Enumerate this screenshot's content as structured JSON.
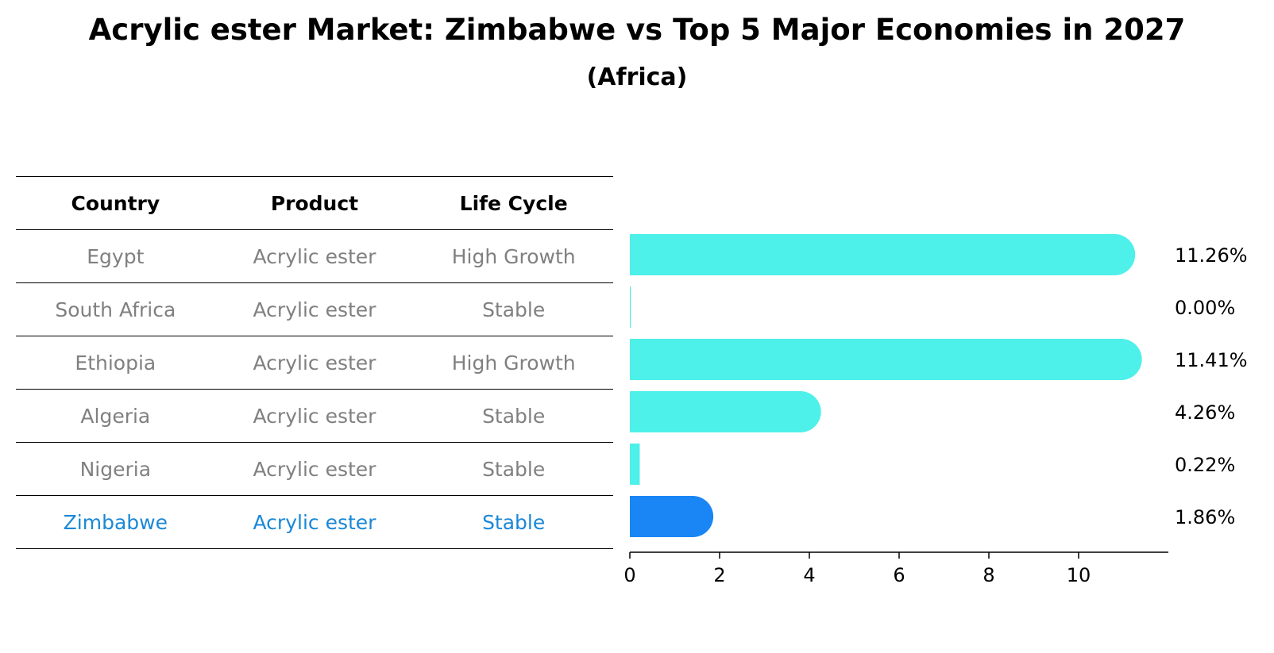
{
  "title": "Acrylic ester Market: Zimbabwe vs Top 5 Major Economies in 2027",
  "subtitle": "(Africa)",
  "table": {
    "headers": [
      "Country",
      "Product",
      "Life Cycle"
    ],
    "rows": [
      {
        "country": "Egypt",
        "product": "Acrylic ester",
        "life_cycle": "High Growth"
      },
      {
        "country": "South Africa",
        "product": "Acrylic ester",
        "life_cycle": "Stable"
      },
      {
        "country": "Ethiopia",
        "product": "Acrylic ester",
        "life_cycle": "High Growth"
      },
      {
        "country": "Algeria",
        "product": "Acrylic ester",
        "life_cycle": "Stable"
      },
      {
        "country": "Nigeria",
        "product": "Acrylic ester",
        "life_cycle": "Stable"
      },
      {
        "country": "Zimbabwe",
        "product": "Acrylic ester",
        "life_cycle": "Stable"
      }
    ]
  },
  "chart_data": {
    "type": "bar",
    "orientation": "horizontal",
    "categories": [
      "Egypt",
      "South Africa",
      "Ethiopia",
      "Algeria",
      "Nigeria",
      "Zimbabwe"
    ],
    "values": [
      11.26,
      0.0,
      11.41,
      4.26,
      0.22,
      1.86
    ],
    "value_labels": [
      "11.26%",
      "0.00%",
      "11.41%",
      "4.26%",
      "0.22%",
      "1.86%"
    ],
    "highlight": "Zimbabwe",
    "xlim": [
      0,
      12
    ],
    "xticks": [
      0,
      2,
      4,
      6,
      8,
      10
    ],
    "grid": false,
    "colors": {
      "default": "#4ef0ea",
      "highlight": "#1a85f5",
      "text_muted": "#808080",
      "text_highlight": "#1a88d6"
    }
  }
}
